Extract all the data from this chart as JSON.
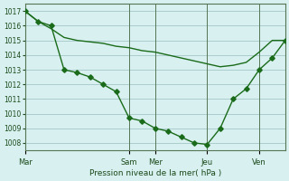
{
  "background_color": "#d8f0f0",
  "grid_color": "#aacccc",
  "line_color": "#1a6b1a",
  "marker_color": "#1a6b1a",
  "xlabel": "Pression niveau de la mer( hPa )",
  "day_labels": [
    "Mar",
    "Sam",
    "Mer",
    "Jeu",
    "Ven"
  ],
  "day_positions": [
    0,
    8,
    10,
    14,
    18
  ],
  "xlim": [
    0,
    20
  ],
  "ylim": [
    1007.5,
    1017.5
  ],
  "ytick_step": 1,
  "series1_x": [
    0,
    1,
    2,
    3,
    4,
    5,
    6,
    7,
    8,
    9,
    10,
    11,
    12,
    13,
    14,
    15,
    16,
    17,
    18,
    19,
    20
  ],
  "series1_y": [
    1017.0,
    1016.3,
    1015.8,
    1015.2,
    1015.0,
    1014.9,
    1014.8,
    1014.6,
    1014.5,
    1014.3,
    1014.2,
    1014.0,
    1013.8,
    1013.6,
    1013.4,
    1013.2,
    1013.3,
    1013.5,
    1014.2,
    1015.0,
    1015.0
  ],
  "series2_x": [
    0,
    1,
    2,
    3,
    4,
    5,
    6,
    7,
    8,
    9,
    10,
    11,
    12,
    13,
    14,
    15,
    16,
    17,
    18,
    19,
    20
  ],
  "series2_y": [
    1017.0,
    1016.3,
    1016.0,
    1013.0,
    1012.8,
    1012.5,
    1012.0,
    1011.5,
    1009.7,
    1009.5,
    1009.0,
    1008.8,
    1008.4,
    1008.0,
    1007.9,
    1009.0,
    1011.0,
    1011.7,
    1013.0,
    1013.8,
    1015.0
  ]
}
